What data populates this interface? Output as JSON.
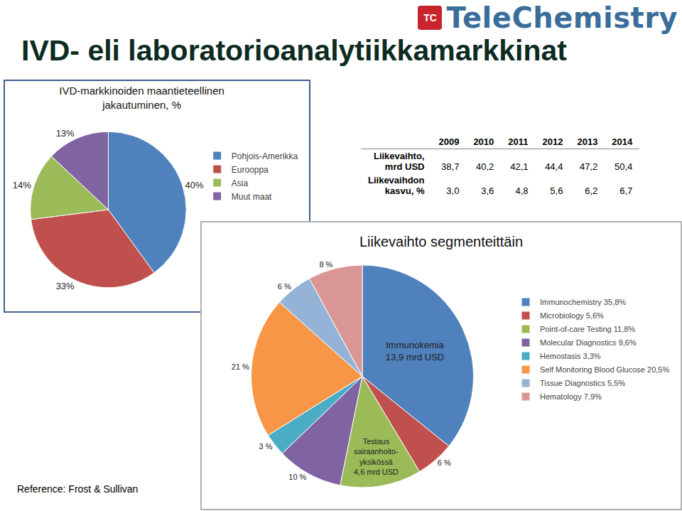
{
  "title": "IVD- eli laboratorioanalytiikkamarkkinat",
  "logo": {
    "badge": "TC",
    "text": "TeleChemistry"
  },
  "reference": "Reference: Frost & Sullivan",
  "table": {
    "columns": [
      "2009",
      "2010",
      "2011",
      "2012",
      "2013",
      "2014"
    ],
    "rows": [
      {
        "label_lines": [
          "Liikevaihto,",
          "mrd USD"
        ],
        "cells": [
          "38,7",
          "40,2",
          "42,1",
          "44,4",
          "47,2",
          "50,4"
        ]
      },
      {
        "label_lines": [
          "Liikevaihdon",
          "kasvu, %"
        ],
        "cells": [
          "3,0",
          "3,6",
          "4,8",
          "5,6",
          "6,2",
          "6,7"
        ]
      }
    ]
  },
  "chart_data": [
    {
      "type": "pie",
      "title": "IVD-markkinoiden maantieteellinen jakautuminen, %",
      "categories": [
        "Pohjois-Amerikka",
        "Eurooppa",
        "Asia",
        "Muut maat"
      ],
      "values": [
        40,
        33,
        14,
        13
      ],
      "value_labels": [
        "40%",
        "33%",
        "14%",
        "13%"
      ],
      "colors": [
        "#4f81bd",
        "#c0504d",
        "#9bbb59",
        "#8064a2"
      ],
      "data_labels": true,
      "legend": "right"
    },
    {
      "type": "pie",
      "title": "Liikevaihto segmenteittäin",
      "categories": [
        "Immunochemistry 35,8%",
        "Microbiology 5,6%",
        "Point-of-care Testing 11,8%",
        "Molecular Diagnostics 9,6%",
        "Hemostasis 3,3%",
        "Self Monitoring Blood Glucose 20,5%",
        "Tissue Diagnostics 5,5%",
        "Hematology 7,9%"
      ],
      "values": [
        35.8,
        5.6,
        11.8,
        9.6,
        3.3,
        20.5,
        5.5,
        7.9
      ],
      "value_labels": [
        null,
        "6 %",
        null,
        "10 %",
        "3 %",
        "21 %",
        "6 %",
        "8 %"
      ],
      "annotations": [
        {
          "category": "Immunochemistry 35,8%",
          "text": [
            "Immunokemia",
            "13,9 mrd USD"
          ]
        },
        {
          "category": "Point-of-care Testing 11,8%",
          "text": [
            "Testaus",
            "sairaanhoito-",
            "yksikössä",
            "4,6 mrd USD"
          ]
        }
      ],
      "colors": [
        "#4f81bd",
        "#c0504d",
        "#9bbb59",
        "#8064a2",
        "#4bacc6",
        "#f79646",
        "#95b3d7",
        "#d99694"
      ],
      "data_labels": true,
      "legend": "right"
    }
  ]
}
